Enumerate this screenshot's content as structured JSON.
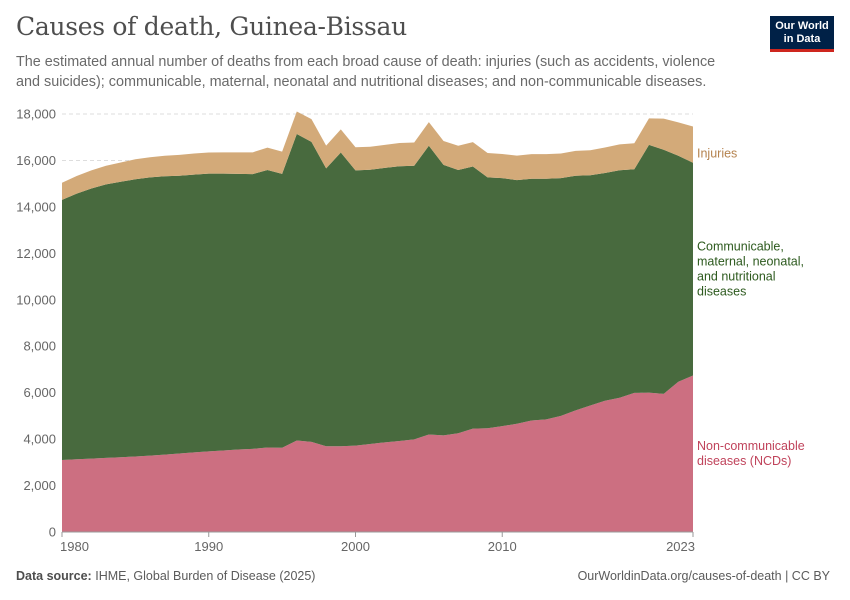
{
  "header": {
    "title": "Causes of death, Guinea-Bissau",
    "subtitle": "The estimated annual number of deaths from each broad cause of death: injuries (such as accidents, violence and suicides); communicable, maternal, neonatal and nutritional diseases; and non-communicable diseases.",
    "logo_line1": "Our World",
    "logo_line2": "in Data"
  },
  "footer": {
    "source_label": "Data source:",
    "source_text": "IHME, Global Burden of Disease (2025)",
    "url": "OurWorldinData.org/causes-of-death | CC BY"
  },
  "chart_data": {
    "type": "area",
    "stacked": true,
    "title": "Causes of death, Guinea-Bissau",
    "xlabel": "",
    "ylabel": "",
    "xlim": [
      1980,
      2023
    ],
    "ylim": [
      0,
      18000
    ],
    "grid": true,
    "x_ticks": [
      1980,
      1990,
      2000,
      2010,
      2023
    ],
    "y_ticks": [
      0,
      2000,
      4000,
      6000,
      8000,
      10000,
      12000,
      14000,
      16000,
      18000
    ],
    "x": [
      1980,
      1981,
      1982,
      1983,
      1984,
      1985,
      1986,
      1987,
      1988,
      1989,
      1990,
      1991,
      1992,
      1993,
      1994,
      1995,
      1996,
      1997,
      1998,
      1999,
      2000,
      2001,
      2002,
      2003,
      2004,
      2005,
      2006,
      2007,
      2008,
      2009,
      2010,
      2011,
      2012,
      2013,
      2014,
      2015,
      2016,
      2017,
      2018,
      2019,
      2020,
      2021,
      2022,
      2023
    ],
    "series": [
      {
        "name": "Non-communicable diseases (NCDs)",
        "label_lines": [
          "Non-communicable",
          "diseases (NCDs)"
        ],
        "color": "#cc6f81",
        "label_color": "#c0435b",
        "values": [
          3100,
          3130,
          3160,
          3190,
          3220,
          3250,
          3290,
          3330,
          3380,
          3430,
          3470,
          3510,
          3550,
          3580,
          3640,
          3630,
          3940,
          3880,
          3690,
          3690,
          3720,
          3790,
          3860,
          3920,
          3990,
          4200,
          4160,
          4250,
          4450,
          4470,
          4560,
          4660,
          4800,
          4850,
          5000,
          5240,
          5450,
          5650,
          5780,
          5990,
          6000,
          5950,
          6470,
          6740
        ]
      },
      {
        "name": "Communicable, maternal, neonatal, and nutritional diseases",
        "label_lines": [
          "Communicable,",
          "maternal, neonatal,",
          "and nutritional",
          "diseases"
        ],
        "color": "#486a3e",
        "label_color": "#2d5a1e",
        "values": [
          11200,
          11440,
          11630,
          11780,
          11860,
          11940,
          11980,
          11990,
          11960,
          11960,
          11960,
          11920,
          11870,
          11830,
          11950,
          11790,
          13200,
          12920,
          11970,
          12650,
          11850,
          11810,
          11820,
          11830,
          11780,
          12430,
          11650,
          11340,
          11290,
          10800,
          10680,
          10490,
          10410,
          10360,
          10240,
          10100,
          9910,
          9810,
          9800,
          9630,
          10670,
          10510,
          9730,
          9160
        ]
      },
      {
        "name": "Injuries",
        "label_lines": [
          "Injuries"
        ],
        "color": "#d3aa79",
        "label_color": "#b5834f",
        "values": [
          740,
          760,
          780,
          800,
          830,
          860,
          870,
          880,
          900,
          910,
          910,
          920,
          930,
          940,
          960,
          960,
          970,
          980,
          980,
          1000,
          1000,
          990,
          990,
          1000,
          1000,
          1020,
          1030,
          1040,
          1050,
          1050,
          1040,
          1060,
          1060,
          1060,
          1060,
          1070,
          1080,
          1100,
          1110,
          1120,
          1140,
          1340,
          1440,
          1560
        ]
      }
    ]
  }
}
